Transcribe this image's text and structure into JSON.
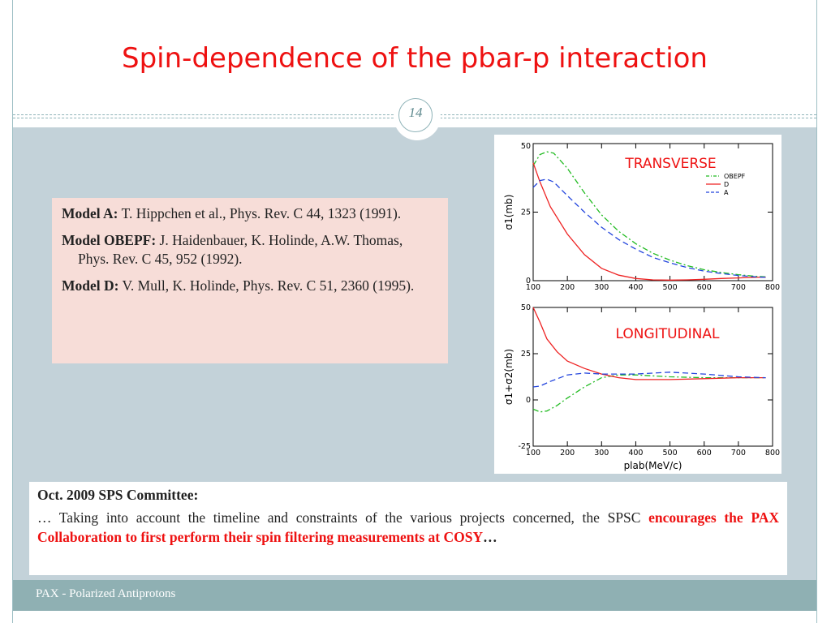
{
  "slide": {
    "title": "Spin-dependence of the pbar-p interaction",
    "page_number": "14",
    "footer": "PAX - Polarized Antiprotons",
    "colors": {
      "title": "#ee1111",
      "content_bg": "#c3d2d9",
      "footer_bg": "#8fb0b3",
      "refs_bg": "#f7ddd8",
      "highlight": "#ee1111"
    }
  },
  "references": [
    {
      "label": "Model A:",
      "text": " T. Hippchen et al., Phys. Rev. C 44, 1323 (1991)."
    },
    {
      "label": "Model OBEPF:",
      "text": " J. Haidenbauer, K. Holinde, A.W. Thomas, Phys. Rev. C 45, 952 (1992)."
    },
    {
      "label": "Model D:",
      "text": " V. Mull, K. Holinde, Phys. Rev. C 51, 2360 (1995)."
    }
  ],
  "note": {
    "heading": "Oct. 2009 SPS Committee:",
    "text_before": "… Taking into account the timeline and constraints of the various projects concerned, the SPSC ",
    "highlight": "encourages the PAX Collaboration to first perform their spin filtering measurements at COSY",
    "text_after": "…"
  },
  "chart_data": [
    {
      "type": "line",
      "panel_label": "TRANSVERSE",
      "xlabel": "",
      "ylabel": "σ1(mb)",
      "xlim": [
        100,
        800
      ],
      "ylim": [
        0,
        50
      ],
      "xticks": [
        100,
        200,
        300,
        400,
        500,
        600,
        700,
        800
      ],
      "yticks": [
        0,
        25,
        50
      ],
      "legend_position": "top-right",
      "series": [
        {
          "name": "OBEPF",
          "color": "#22bb22",
          "dash": "dashdot",
          "x": [
            100,
            120,
            140,
            160,
            200,
            250,
            300,
            350,
            400,
            450,
            500,
            550,
            600,
            650,
            700,
            750,
            780
          ],
          "y": [
            42,
            46,
            47,
            46.5,
            41,
            32,
            24,
            18,
            13.5,
            10,
            7.5,
            5.5,
            4,
            3,
            2.2,
            1.6,
            1.4
          ]
        },
        {
          "name": "D",
          "color": "#ee2222",
          "dash": "solid",
          "x": [
            100,
            120,
            150,
            200,
            250,
            300,
            350,
            400,
            450,
            500,
            550,
            600,
            650,
            700,
            750,
            780
          ],
          "y": [
            43,
            36,
            27,
            17,
            9.5,
            4.5,
            2,
            0.8,
            0.3,
            0.2,
            0.3,
            0.5,
            0.8,
            1,
            1.2,
            1.3
          ]
        },
        {
          "name": "A",
          "color": "#2244dd",
          "dash": "dashed",
          "x": [
            100,
            120,
            140,
            160,
            200,
            250,
            300,
            350,
            400,
            450,
            500,
            550,
            600,
            650,
            700,
            750,
            780
          ],
          "y": [
            34,
            36.5,
            37,
            36,
            31,
            25,
            19.5,
            15,
            11.5,
            8.5,
            6.5,
            4.8,
            3.5,
            2.6,
            1.9,
            1.4,
            1.2
          ]
        }
      ]
    },
    {
      "type": "line",
      "panel_label": "LONGITUDINAL",
      "xlabel": "plab(MeV/c)",
      "ylabel": "σ1+σ2(mb)",
      "xlim": [
        100,
        800
      ],
      "ylim": [
        -25,
        50
      ],
      "xticks": [
        100,
        200,
        300,
        400,
        500,
        600,
        700,
        800
      ],
      "yticks": [
        -25,
        0,
        25,
        50
      ],
      "series": [
        {
          "name": "OBEPF",
          "color": "#22bb22",
          "dash": "dashdot",
          "x": [
            100,
            120,
            140,
            170,
            200,
            250,
            300,
            350,
            400,
            500,
            600,
            700,
            780
          ],
          "y": [
            -5,
            -6.5,
            -6,
            -3,
            1,
            7,
            12,
            13.5,
            13.5,
            12.5,
            12,
            12,
            12
          ]
        },
        {
          "name": "D",
          "color": "#ee2222",
          "dash": "solid",
          "x": [
            100,
            120,
            140,
            170,
            200,
            250,
            300,
            350,
            400,
            500,
            600,
            700,
            780
          ],
          "y": [
            50,
            42,
            33,
            26,
            21,
            17,
            14,
            12,
            11,
            11,
            11.5,
            12,
            12
          ]
        },
        {
          "name": "A",
          "color": "#2244dd",
          "dash": "dashed",
          "x": [
            100,
            120,
            150,
            200,
            250,
            300,
            350,
            400,
            500,
            600,
            700,
            780
          ],
          "y": [
            7,
            7.5,
            10,
            13.5,
            14.5,
            14,
            14,
            14,
            15,
            14,
            12.5,
            12
          ]
        }
      ]
    }
  ]
}
